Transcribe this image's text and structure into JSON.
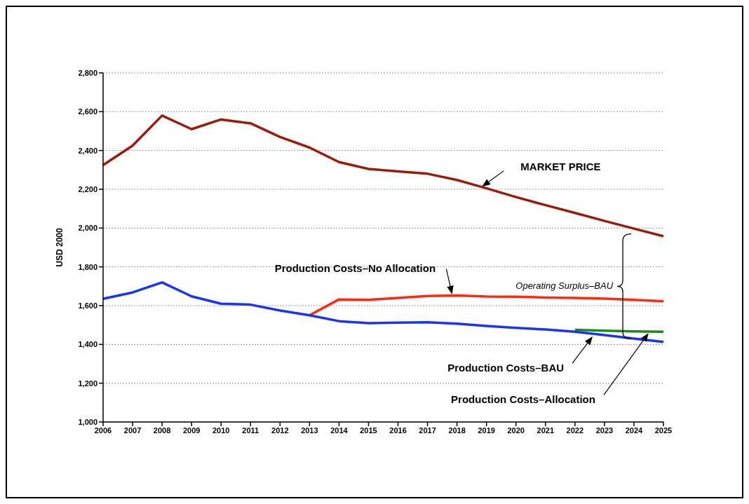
{
  "chart_data": {
    "type": "line",
    "ylabel": "USD 2000",
    "categories": [
      "2006",
      "2007",
      "2008",
      "2009",
      "2010",
      "2011",
      "2012",
      "2013",
      "2014",
      "2015",
      "2016",
      "2017",
      "2018",
      "2019",
      "2020",
      "2021",
      "2022",
      "2023",
      "2024",
      "2025"
    ],
    "series": [
      {
        "name": "MARKET PRICE",
        "color": "#9b1b0e",
        "values": [
          2325,
          2425,
          2580,
          2510,
          2560,
          2540,
          2470,
          2415,
          2340,
          2305,
          2292,
          2280,
          2248,
          2205,
          2160,
          2118,
          2078,
          2037,
          1997,
          1958
        ]
      },
      {
        "name": "Production Costs–BAU",
        "color": "#1a33f5",
        "values": [
          1635,
          1668,
          1720,
          1648,
          1610,
          1605,
          1575,
          1550,
          1520,
          1510,
          1512,
          1514,
          1507,
          1495,
          1485,
          1477,
          1465,
          1448,
          1430,
          1413
        ]
      },
      {
        "name": "Production Costs–No Allocation",
        "color": "#ff2a10",
        "values": [
          null,
          null,
          null,
          null,
          null,
          null,
          null,
          1550,
          1632,
          1630,
          1640,
          1650,
          1652,
          1647,
          1646,
          1642,
          1640,
          1636,
          1630,
          1623
        ]
      },
      {
        "name": "Production Costs–Allocation",
        "color": "#1a8a1a",
        "values": [
          null,
          null,
          null,
          null,
          null,
          null,
          null,
          null,
          null,
          null,
          null,
          null,
          null,
          null,
          null,
          null,
          1475,
          1471,
          1467,
          1465
        ]
      }
    ],
    "ylim": [
      1000,
      2800
    ],
    "yticks": [
      {
        "value": 1000,
        "label": "1,000"
      },
      {
        "value": 1200,
        "label": "1,200"
      },
      {
        "value": 1400,
        "label": "1,400"
      },
      {
        "value": 1600,
        "label": "1,600"
      },
      {
        "value": 1800,
        "label": "1,800"
      },
      {
        "value": 2000,
        "label": "2,000"
      },
      {
        "value": 2200,
        "label": "2,200"
      },
      {
        "value": 2400,
        "label": "2,400"
      },
      {
        "value": 2600,
        "label": "2,600"
      },
      {
        "value": 2800,
        "label": "2,800"
      }
    ],
    "grid": "y",
    "legend": false,
    "marker": "none",
    "line_style": "solid",
    "annotations": [
      "Operating Surplus–BAU"
    ]
  }
}
